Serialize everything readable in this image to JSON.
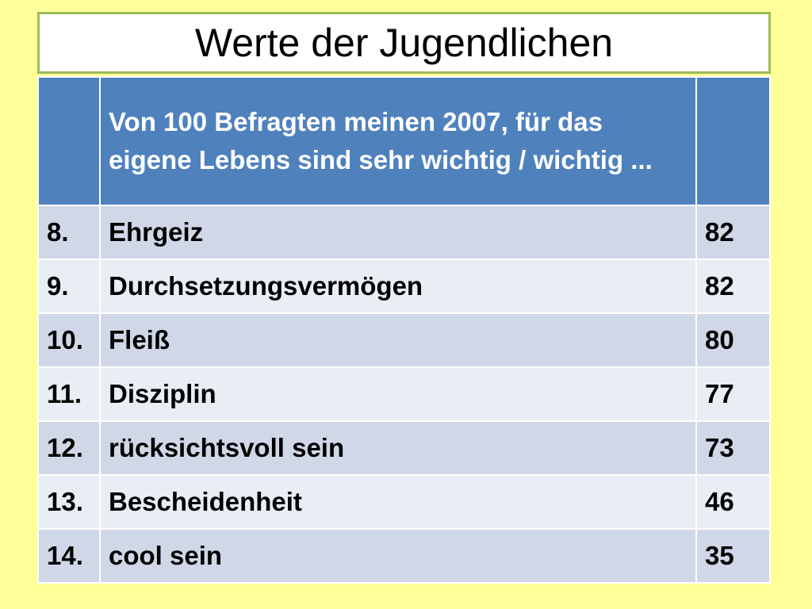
{
  "title": "Werte der Jugendlichen",
  "table": {
    "header": [
      "",
      "Von 100 Befragten meinen 2007, für das eigene Lebens sind sehr wichtig / wichtig ...",
      ""
    ],
    "rows": [
      {
        "rank": "8.",
        "value_name": "Ehrgeiz",
        "percent": "82"
      },
      {
        "rank": "9.",
        "value_name": "Durchsetzungsvermögen",
        "percent": "82"
      },
      {
        "rank": "10.",
        "value_name": "Fleiß",
        "percent": "80"
      },
      {
        "rank": "11.",
        "value_name": "Disziplin",
        "percent": "77"
      },
      {
        "rank": "12.",
        "value_name": "rücksichtsvoll sein",
        "percent": "73"
      },
      {
        "rank": "13.",
        "value_name": "Bescheidenheit",
        "percent": "46"
      },
      {
        "rank": "14.",
        "value_name": "cool sein",
        "percent": "35"
      }
    ]
  },
  "colors": {
    "background": "#FFFF99",
    "title_border": "#9BBB59",
    "header_fill": "#4F81BD",
    "row_odd": "#D0D8E8",
    "row_even": "#E9EDF4"
  }
}
